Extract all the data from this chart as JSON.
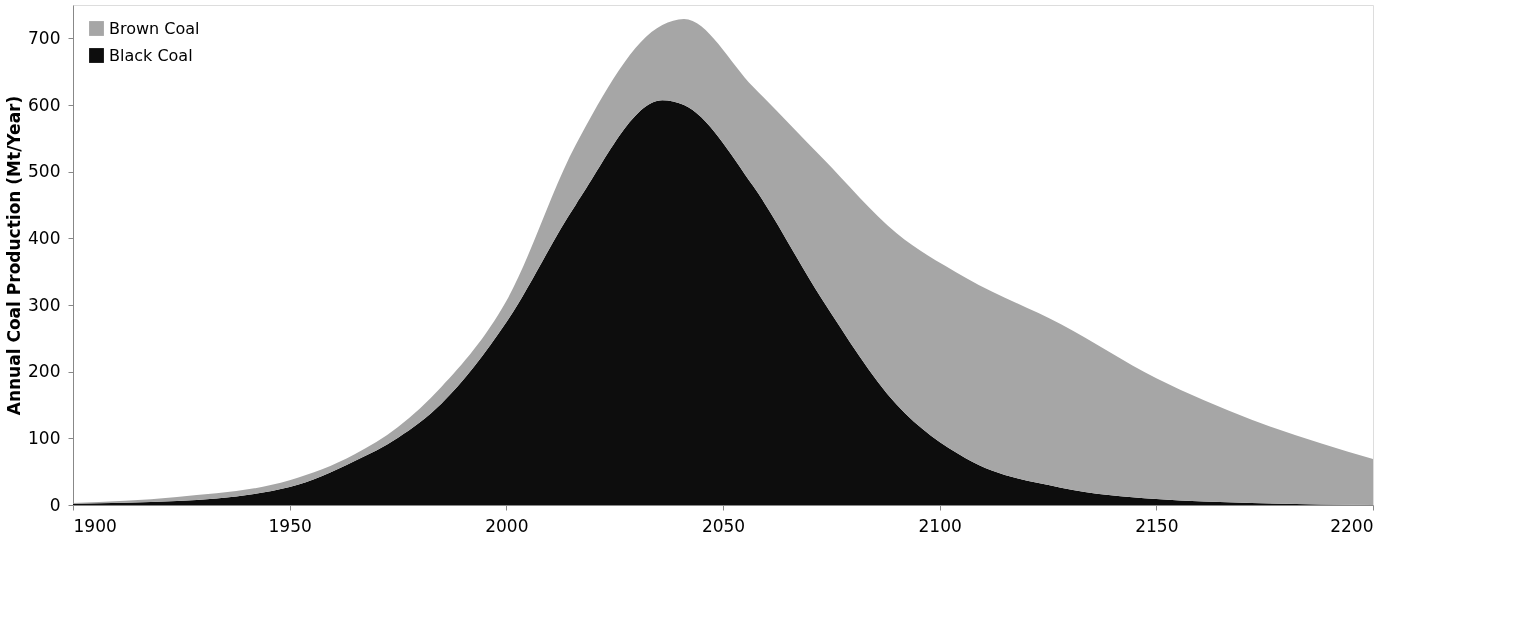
{
  "chart_data": {
    "type": "area",
    "stacked": true,
    "ylabel": "Annual Coal Production  (Mt/Year)",
    "x": [
      1900,
      1924,
      1950,
      1965,
      1975,
      1985,
      2000,
      2016,
      2036,
      2041,
      2057,
      2073,
      2090,
      2106,
      2128,
      2150,
      2172,
      2200
    ],
    "series": [
      {
        "name": "Black Coal",
        "color": "#0d0d0d",
        "values": [
          2,
          6,
          27,
          66,
          101,
          152,
          274,
          450,
          607,
          600,
          478,
          307,
          151,
          70,
          26,
          9,
          3,
          0
        ]
      },
      {
        "name": "Brown Coal",
        "color": "#a6a6a6",
        "values": [
          1,
          6,
          10,
          10,
          16,
          25,
          32,
          90,
          113,
          129,
          149,
          213,
          257,
          271,
          245,
          181,
          125,
          69
        ]
      }
    ],
    "xlim": [
      1900,
      2200
    ],
    "xticks": [
      1900,
      1950,
      2000,
      2050,
      2100,
      2150,
      2200
    ],
    "ylim": [
      0,
      750
    ],
    "yticks": [
      0,
      100,
      200,
      300,
      400,
      500,
      600,
      700
    ],
    "grid": false,
    "legend": "top left"
  }
}
